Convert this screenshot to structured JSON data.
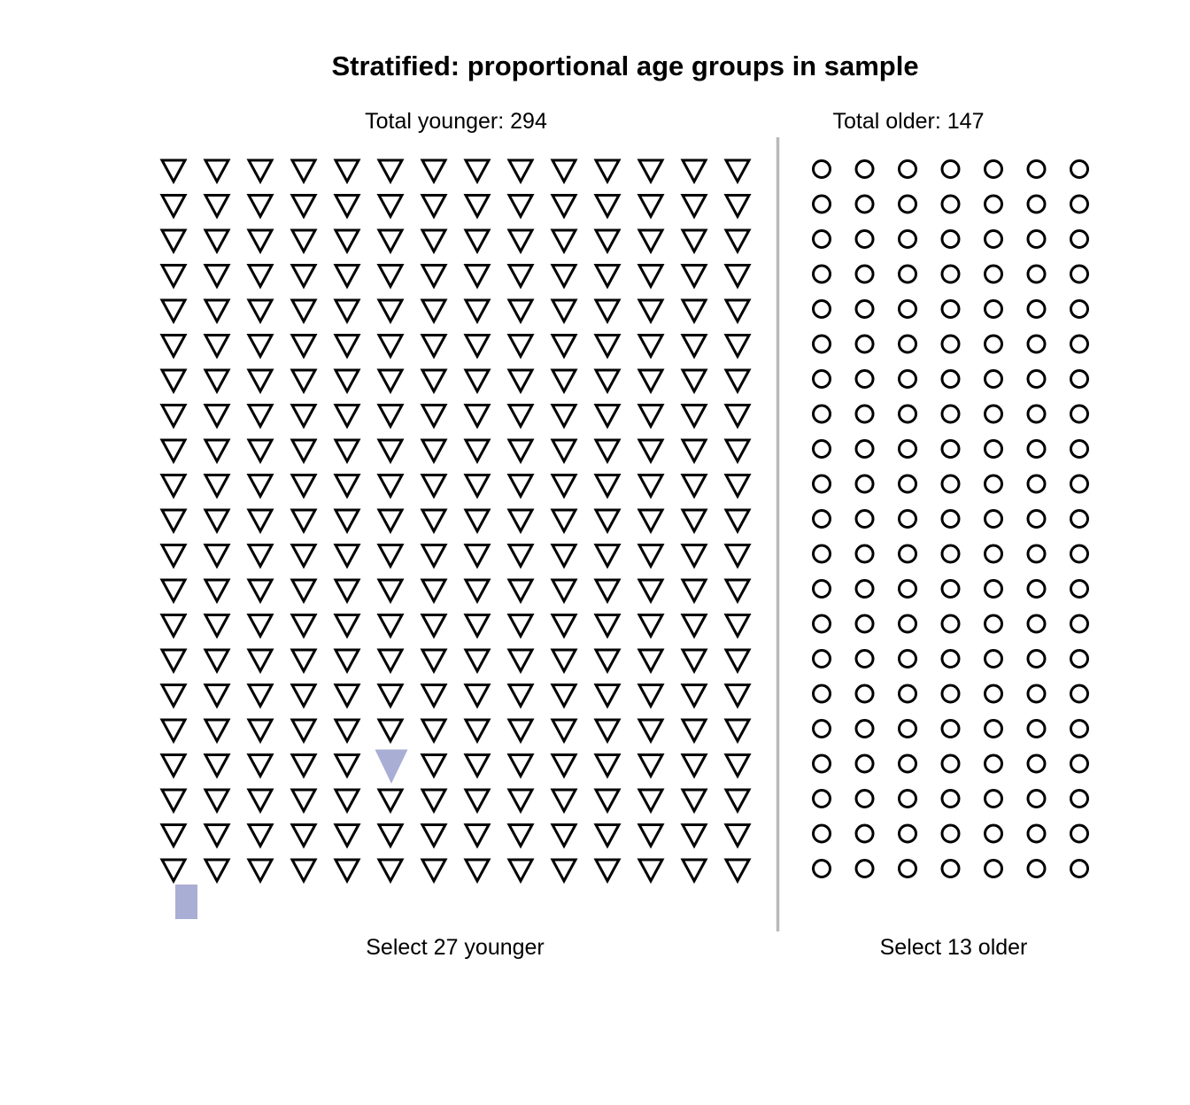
{
  "title": "Stratified: proportional age groups in sample",
  "panels": {
    "younger": {
      "header": "Total younger: 294",
      "footer": "Select 27 younger",
      "total": 294,
      "to_select": 27,
      "grid_rows": 21,
      "grid_cols": 14,
      "marker": "open-down-triangle",
      "highlight_cell": {
        "row": 18,
        "col": 6
      }
    },
    "older": {
      "header": "Total older: 147",
      "footer": "Select 13 older",
      "total": 147,
      "to_select": 13,
      "grid_rows": 21,
      "grid_cols": 7,
      "marker": "open-circle"
    }
  },
  "colors": {
    "marker_stroke": "#000000",
    "highlight_fill": "#a9aed4",
    "divider": "#b9b9b9",
    "text": "#000000",
    "background": "#ffffff"
  },
  "chart_data": {
    "type": "pictograph",
    "title": "Stratified: proportional age groups in sample",
    "grid": "off",
    "legend_position": "none",
    "groups": [
      {
        "name": "younger",
        "total": 294,
        "to_select": 27,
        "marker": "open-down-triangle",
        "grid_rows": 21,
        "grid_cols": 14,
        "highlighted_marker_cell": {
          "row": 18,
          "col": 6
        },
        "annotations": [
          "Total younger: 294",
          "Select 27 younger"
        ]
      },
      {
        "name": "older",
        "total": 147,
        "to_select": 13,
        "marker": "open-circle",
        "grid_rows": 21,
        "grid_cols": 7,
        "annotations": [
          "Total older: 147",
          "Select 13 older"
        ]
      }
    ]
  }
}
